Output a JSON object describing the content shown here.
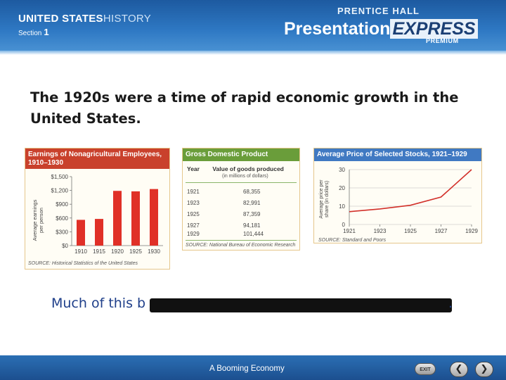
{
  "header": {
    "brand_strong": "UNITED STATES",
    "brand_light": "HISTORY",
    "section_label": "Section",
    "section_number": "1",
    "publisher": "PRENTICE HALL",
    "product_a": "Presentation",
    "product_b": "EXPRESS",
    "product_sub": "PREMIUM"
  },
  "title": "The 1920s were a time of rapid economic growth in the United States.",
  "charts": {
    "earnings": {
      "title_line1": "Earnings of Nonagricultural Employees,",
      "title_line2": "1910–1930",
      "ylabel_line1": "Average earnings",
      "ylabel_line2": "per person",
      "yticks": [
        "$0",
        "$300",
        "$600",
        "$900",
        "$1,200",
        "$1,500"
      ],
      "source": "SOURCE: Historical Statistics of the United States"
    },
    "gdp": {
      "title": "Gross Domestic Product",
      "col_year": "Year",
      "col_value": "Value of goods produced",
      "col_unit": "(in millions of dollars)",
      "rows": [
        {
          "year": "1921",
          "value": "68,355"
        },
        {
          "year": "1923",
          "value": "82,991"
        },
        {
          "year": "1925",
          "value": "87,359"
        },
        {
          "year": "1927",
          "value": "94,181"
        },
        {
          "year": "1929",
          "value": "101,444"
        }
      ],
      "source": "SOURCE: National Bureau of Economic Research"
    },
    "stocks": {
      "title": "Average Price of Selected Stocks, 1921–1929",
      "ylabel_line1": "Average price per",
      "ylabel_line2": "share (in dollars)",
      "yticks": [
        "0",
        "10",
        "20",
        "30"
      ],
      "source": "SOURCE: Standard and Poors"
    }
  },
  "chart_data": [
    {
      "type": "bar",
      "title": "Earnings of Nonagricultural Employees, 1910–1930",
      "ylabel": "Average earnings per person",
      "categories": [
        "1910",
        "1915",
        "1920",
        "1925",
        "1930"
      ],
      "values": [
        560,
        580,
        1190,
        1180,
        1230
      ],
      "ylim": [
        0,
        1500
      ],
      "bar_color": "#e03027"
    },
    {
      "type": "line",
      "title": "Average Price of Selected Stocks, 1921–1929",
      "ylabel": "Average price per share (in dollars)",
      "x": [
        "1921",
        "1923",
        "1925",
        "1927",
        "1929"
      ],
      "values": [
        7,
        8.5,
        10.5,
        15,
        30
      ],
      "ylim": [
        0,
        30
      ],
      "line_color": "#d2302a"
    }
  ],
  "caption": {
    "visible_text": "Much of this b",
    "end_punct": "."
  },
  "footer": {
    "title": "A Booming Economy",
    "exit_label": "EXIT",
    "prev_glyph": "❮",
    "next_glyph": "❯"
  }
}
